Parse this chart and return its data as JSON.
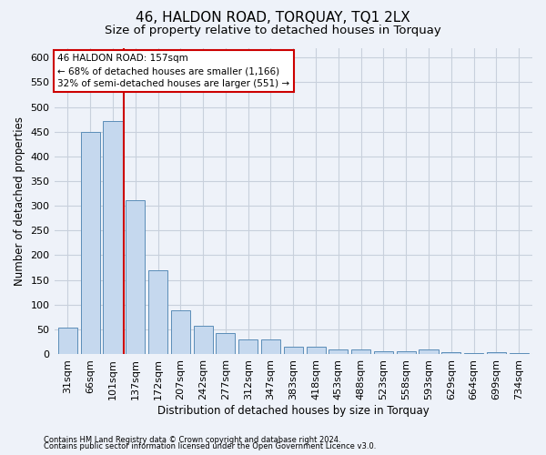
{
  "title": "46, HALDON ROAD, TORQUAY, TQ1 2LX",
  "subtitle": "Size of property relative to detached houses in Torquay",
  "xlabel": "Distribution of detached houses by size in Torquay",
  "ylabel": "Number of detached properties",
  "categories": [
    "31sqm",
    "66sqm",
    "101sqm",
    "137sqm",
    "172sqm",
    "207sqm",
    "242sqm",
    "277sqm",
    "312sqm",
    "347sqm",
    "383sqm",
    "418sqm",
    "453sqm",
    "488sqm",
    "523sqm",
    "558sqm",
    "593sqm",
    "629sqm",
    "664sqm",
    "699sqm",
    "734sqm"
  ],
  "values": [
    54,
    450,
    472,
    311,
    170,
    88,
    57,
    43,
    30,
    30,
    15,
    15,
    10,
    10,
    6,
    6,
    9,
    4,
    1,
    4,
    2
  ],
  "bar_color": "#c5d8ee",
  "bar_edge_color": "#5b8db8",
  "annotation_line1": "46 HALDON ROAD: 157sqm",
  "annotation_line2": "← 68% of detached houses are smaller (1,166)",
  "annotation_line3": "32% of semi-detached houses are larger (551) →",
  "annotation_box_facecolor": "#ffffff",
  "annotation_box_edgecolor": "#cc0000",
  "property_line_color": "#cc0000",
  "property_line_x": 3,
  "ylim": [
    0,
    620
  ],
  "yticks": [
    0,
    50,
    100,
    150,
    200,
    250,
    300,
    350,
    400,
    450,
    500,
    550,
    600
  ],
  "bg_color": "#eef2f9",
  "grid_color": "#d8dde8",
  "title_fontsize": 11,
  "subtitle_fontsize": 9.5,
  "tick_fontsize": 8,
  "ylabel_fontsize": 8.5,
  "xlabel_fontsize": 8.5,
  "footer_line1": "Contains HM Land Registry data © Crown copyright and database right 2024.",
  "footer_line2": "Contains public sector information licensed under the Open Government Licence v3.0."
}
